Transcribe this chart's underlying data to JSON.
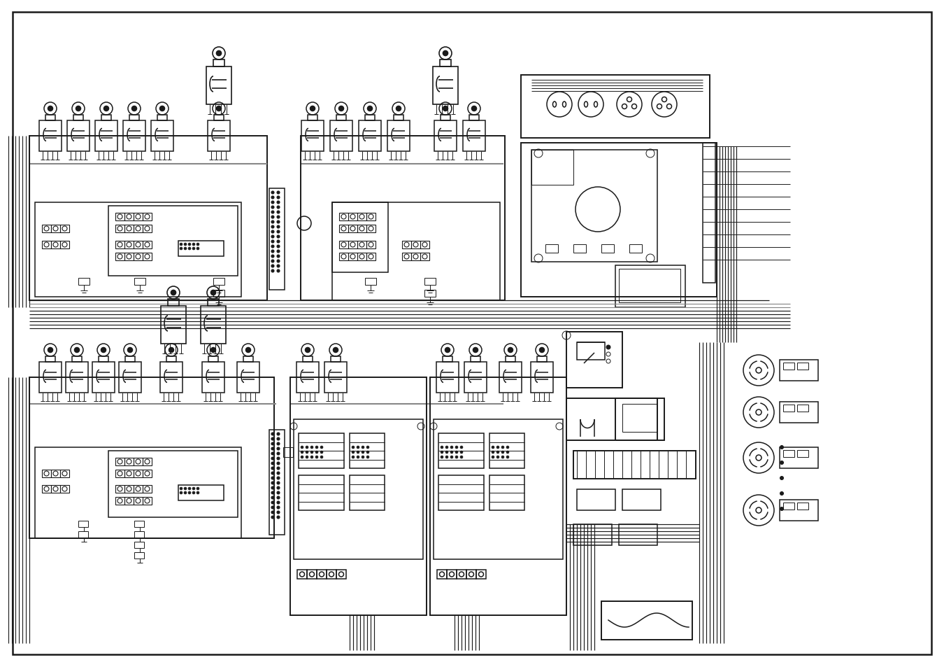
{
  "bg_color": "#ffffff",
  "line_color": "#1a1a1a",
  "gray_color": "#888888",
  "border_lw": 1.8,
  "thin_lw": 0.7,
  "med_lw": 1.1,
  "thick_lw": 1.4,
  "fig_width": 13.5,
  "fig_height": 9.54,
  "dpi": 100
}
